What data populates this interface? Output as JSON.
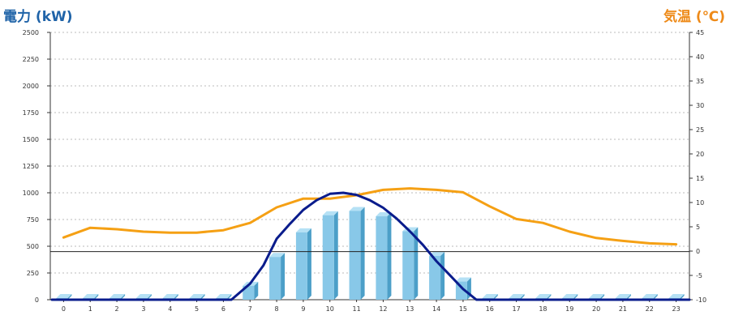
{
  "chart_data": {
    "type": "bar",
    "title": "",
    "y_left": {
      "label": "電力 (kW)",
      "min": 0,
      "max": 2500,
      "ticks": [
        0,
        250,
        500,
        750,
        1000,
        1250,
        1500,
        1750,
        2000,
        2250,
        2500
      ]
    },
    "y_right": {
      "label": "気温 (℃)",
      "min": -10,
      "max": 45,
      "ticks": [
        -10,
        -5,
        0,
        5,
        10,
        15,
        20,
        25,
        30,
        35,
        40,
        45
      ]
    },
    "categories": [
      "0",
      "1",
      "2",
      "3",
      "4",
      "5",
      "6",
      "7",
      "8",
      "9",
      "10",
      "11",
      "12",
      "13",
      "14",
      "15",
      "16",
      "17",
      "18",
      "19",
      "20",
      "21",
      "22",
      "23"
    ],
    "grid": true,
    "series": [
      {
        "type": "bar",
        "axis": "left",
        "values": [
          15,
          15,
          15,
          15,
          15,
          15,
          15,
          130,
          400,
          630,
          790,
          830,
          780,
          640,
          410,
          170,
          15,
          15,
          15,
          15,
          15,
          15,
          15,
          15
        ]
      },
      {
        "type": "line",
        "axis": "left",
        "x": [
          0,
          1,
          2,
          3,
          4,
          5,
          6,
          6.3,
          7,
          7.5,
          8,
          8.5,
          9,
          9.5,
          10,
          10.5,
          11,
          11.5,
          12,
          12.5,
          13,
          13.5,
          14,
          14.5,
          15,
          15.5,
          16,
          17,
          18,
          19,
          20,
          21,
          22,
          23
        ],
        "values": [
          0,
          0,
          0,
          0,
          0,
          0,
          0,
          0,
          150,
          320,
          570,
          710,
          840,
          930,
          990,
          1000,
          980,
          930,
          860,
          760,
          640,
          510,
          360,
          230,
          100,
          0,
          0,
          0,
          0,
          0,
          0,
          0,
          0,
          0
        ]
      },
      {
        "type": "line",
        "axis": "right",
        "values": [
          2.8,
          4.8,
          4.5,
          4,
          3.8,
          3.8,
          4.3,
          5.8,
          9,
          10.8,
          10.8,
          11.5,
          12.6,
          12.9,
          12.6,
          12.1,
          9.2,
          6.6,
          5.8,
          4,
          2.7,
          2.1,
          1.6,
          1.4
        ]
      }
    ],
    "reference_line": {
      "axis": "left",
      "value": 450
    },
    "colors": {
      "bar": "#88c8e8",
      "bar_side": "#4c9fc8",
      "bar_top": "#b5e1f5",
      "power_line": "#0a1c8c",
      "temp_line": "#f5a014",
      "left_title": "#1f63a8",
      "right_title": "#ee8a18"
    }
  }
}
